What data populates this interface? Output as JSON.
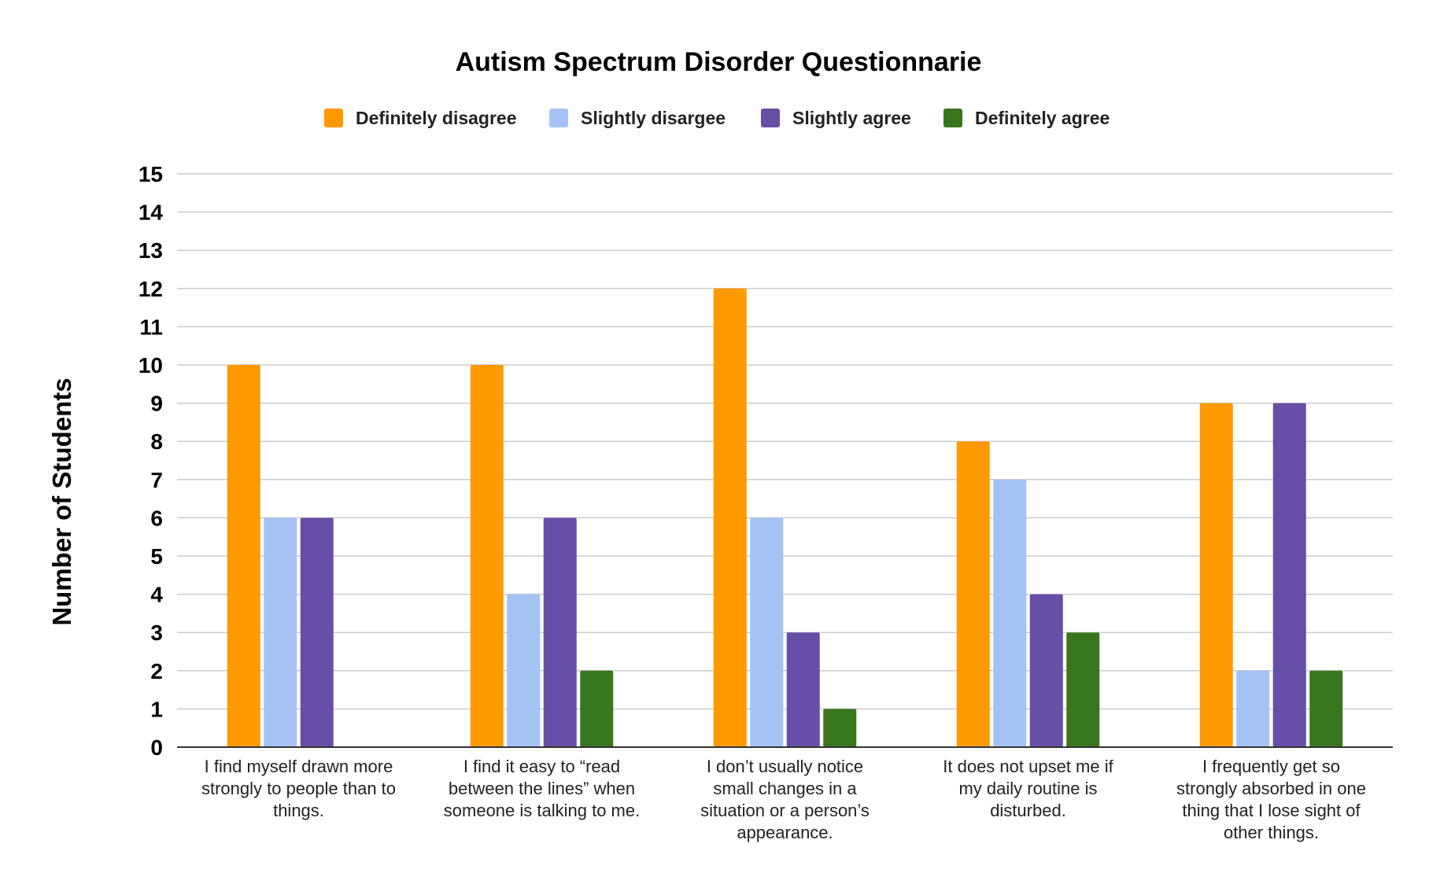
{
  "chart_data": {
    "type": "bar",
    "title": "Autism Spectrum Disorder Questionnarie",
    "xlabel": "",
    "ylabel": "Number of Students",
    "ylim": [
      0,
      15
    ],
    "yticks": [
      "0",
      "1",
      "2",
      "3",
      "4",
      "5",
      "6",
      "7",
      "8",
      "9",
      "10",
      "11",
      "12",
      "13",
      "14",
      "15"
    ],
    "grid": true,
    "legend_position": "top",
    "categories": [
      [
        "I find myself drawn more",
        "strongly to people than to",
        "things."
      ],
      [
        "I find it easy to “read",
        "between the lines” when",
        "someone is talking to me."
      ],
      [
        "I don’t usually notice",
        "small changes in a",
        "situation or a person’s",
        "appearance."
      ],
      [
        "It does not upset me if",
        "my daily routine is",
        "disturbed."
      ],
      [
        "I frequently get so",
        "strongly absorbed in one",
        "thing that I lose sight of",
        "other things."
      ]
    ],
    "series": [
      {
        "name": "Definitely disagree",
        "color": "#ff9900",
        "values": [
          10,
          10,
          12,
          8,
          9
        ]
      },
      {
        "name": "Slightly disargee",
        "color": "#a4c2f4",
        "values": [
          6,
          4,
          6,
          7,
          2
        ]
      },
      {
        "name": "Slightly agree",
        "color": "#674ea7",
        "values": [
          6,
          6,
          3,
          4,
          9
        ]
      },
      {
        "name": "Definitely agree",
        "color": "#38761d",
        "values": [
          0,
          2,
          1,
          3,
          2
        ]
      }
    ]
  }
}
